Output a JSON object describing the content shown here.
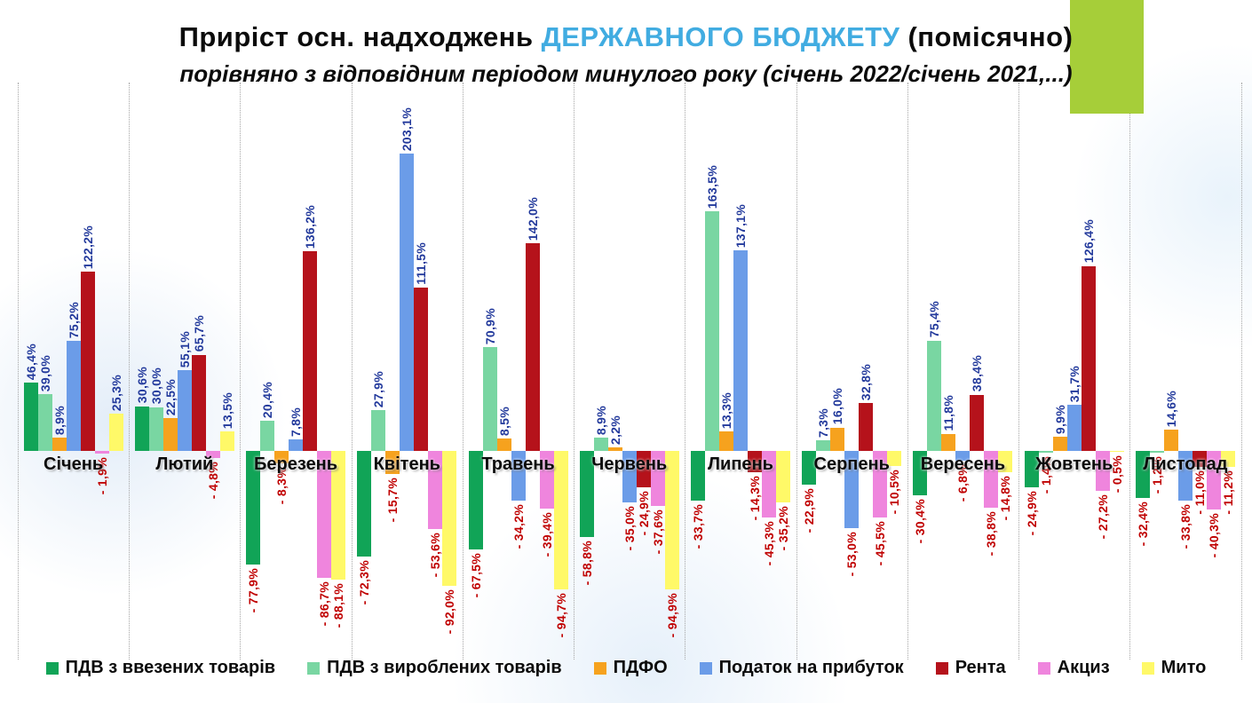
{
  "title": {
    "prefix": "Приріст осн. надходжень ",
    "highlight": "ДЕРЖАВНОГО БЮДЖЕТУ",
    "suffix": " (помісячно)"
  },
  "subtitle": "порівняно з відповідним періодом минулого року (січень 2022/січень 2021,...)",
  "colors": {
    "title_highlight": "#41ACE1",
    "accent_rect": "#A6CE39",
    "positive_label": "#233A9C",
    "negative_label": "#C00000",
    "gridline": "#A6A6A6"
  },
  "chart_data": {
    "type": "bar",
    "unit": "%",
    "decimal_separator": ",",
    "categories": [
      "Січень",
      "Лютий",
      "Березень",
      "Квітень",
      "Травень",
      "Червень",
      "Липень",
      "Серпень",
      "Вересень",
      "Жовтень",
      "Листопад"
    ],
    "series": [
      {
        "name": "ПДВ з ввезених товарів",
        "color": "#11A457",
        "values": [
          46.4,
          30.6,
          -77.9,
          -72.3,
          -67.5,
          -58.8,
          -33.7,
          -22.9,
          -30.4,
          -24.9,
          -32.4
        ]
      },
      {
        "name": "ПДВ з вироблених товарів",
        "color": "#79D6A2",
        "values": [
          39.0,
          30.0,
          20.4,
          27.9,
          70.9,
          8.9,
          163.5,
          7.3,
          75.4,
          -1.4,
          -1.2
        ]
      },
      {
        "name": "ПДФО",
        "color": "#F6A21E",
        "values": [
          8.9,
          22.5,
          -8.3,
          -15.7,
          8.5,
          2.2,
          13.3,
          16.0,
          11.8,
          9.9,
          14.6
        ]
      },
      {
        "name": "Податок на прибуток",
        "color": "#6B9CE8",
        "values": [
          75.2,
          55.1,
          7.8,
          203.1,
          -34.2,
          -35.0,
          137.1,
          -53.0,
          -6.8,
          31.7,
          -33.8
        ]
      },
      {
        "name": "Рента",
        "color": "#B5121B",
        "values": [
          122.2,
          65.7,
          136.2,
          111.5,
          142.0,
          -24.9,
          -14.3,
          32.8,
          38.4,
          126.4,
          -11.0
        ]
      },
      {
        "name": "Акциз",
        "color": "#EF85DD",
        "values": [
          -1.9,
          -4.8,
          -86.7,
          -53.6,
          -39.4,
          -37.6,
          -45.3,
          -45.5,
          -38.8,
          -27.2,
          -40.3
        ]
      },
      {
        "name": "Мито",
        "color": "#FFF968",
        "values": [
          25.3,
          13.5,
          -88.1,
          -92.0,
          -94.7,
          -94.9,
          -35.2,
          -10.5,
          -14.8,
          -0.5,
          -11.2
        ]
      }
    ],
    "ylim": [
      -100,
      210
    ],
    "xlabel": "",
    "ylabel": "",
    "grid": "vertical dotted lines between month groups",
    "legend_position": "bottom",
    "value_labels": "rotated 90°, positive in dark blue above bars, negative in red below bars with leading minus"
  }
}
